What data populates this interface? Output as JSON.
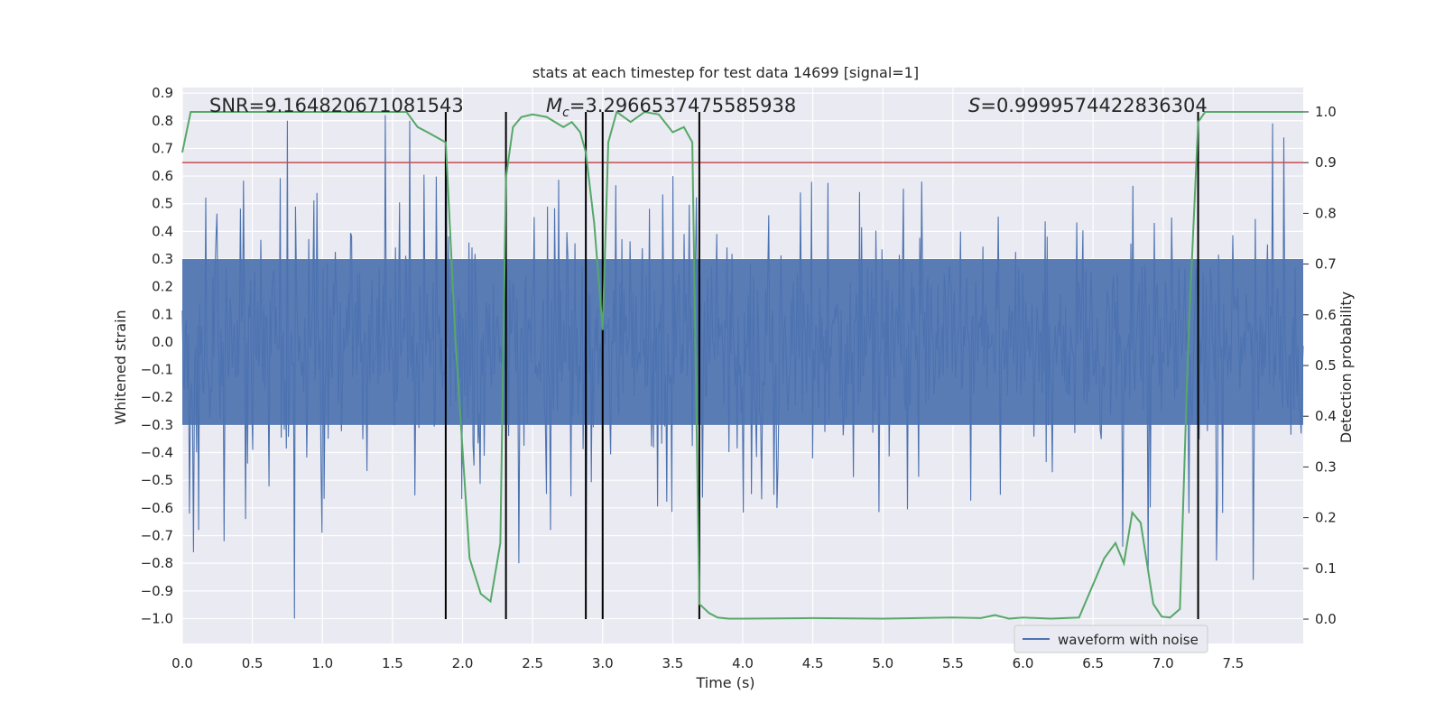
{
  "chart_data": {
    "type": "line",
    "title": "stats at each timestep for test data 14699 [signal=1]",
    "xlabel": "Time (s)",
    "ylabel": "Whitened strain",
    "y2label": "Detection probability",
    "xlim": [
      0,
      8.0
    ],
    "ylim": [
      -1.09,
      0.92
    ],
    "y2lim": [
      -0.048,
      1.048
    ],
    "xticks": [
      0.0,
      0.5,
      1.0,
      1.5,
      2.0,
      2.5,
      3.0,
      3.5,
      4.0,
      4.5,
      5.0,
      5.5,
      6.0,
      6.5,
      7.0,
      7.5
    ],
    "xtick_labels": [
      "0.0",
      "0.5",
      "1.0",
      "1.5",
      "2.0",
      "2.5",
      "3.0",
      "3.5",
      "4.0",
      "4.5",
      "5.0",
      "5.5",
      "6.0",
      "6.5",
      "7.0",
      "7.5"
    ],
    "yticks": [
      0.9,
      0.8,
      0.7,
      0.6,
      0.5,
      0.4,
      0.3,
      0.2,
      0.1,
      0.0,
      -0.1,
      -0.2,
      -0.3,
      -0.4,
      -0.5,
      -0.6,
      -0.7,
      -0.8,
      -0.9,
      -1.0
    ],
    "ytick_labels": [
      "0.9",
      "0.8",
      "0.7",
      "0.6",
      "0.5",
      "0.4",
      "0.3",
      "0.2",
      "0.1",
      "0.0",
      "−0.1",
      "−0.2",
      "−0.3",
      "−0.4",
      "−0.5",
      "−0.6",
      "−0.7",
      "−0.8",
      "−0.9",
      "−1.0"
    ],
    "y2ticks": [
      1.0,
      0.9,
      0.8,
      0.7,
      0.6,
      0.5,
      0.4,
      0.3,
      0.2,
      0.1,
      0.0
    ],
    "y2tick_labels": [
      "1.0",
      "0.9",
      "0.8",
      "0.7",
      "0.6",
      "0.5",
      "0.4",
      "0.3",
      "0.2",
      "0.1",
      "0.0"
    ],
    "annotations": {
      "snr": "SNR=9.164820671081543",
      "mc_prefix": "M",
      "mc_sub": "c",
      "mc_value": "=3.2966537475585938",
      "s_prefix": "S",
      "s_value": "=0.9999574422836304"
    },
    "legend": {
      "label": "waveform with noise",
      "position": "bottom-right"
    },
    "threshold": {
      "value": 0.9,
      "axis": "y2",
      "color": "#c44e52"
    },
    "event_lines": [
      1.88,
      2.31,
      2.88,
      3.0,
      3.69,
      7.25
    ],
    "waveform": {
      "name": "waveform with noise",
      "color": "#4c72b0",
      "x_range": [
        0,
        8.0
      ],
      "samples": 1100,
      "typical_envelope": [
        -0.3,
        0.3
      ],
      "spikes": [
        {
          "x": 0.05,
          "y": -0.62
        },
        {
          "x": 0.08,
          "y": -0.76
        },
        {
          "x": 0.12,
          "y": -0.68
        },
        {
          "x": 0.3,
          "y": -0.72
        },
        {
          "x": 0.45,
          "y": -0.64
        },
        {
          "x": 0.75,
          "y": 0.8
        },
        {
          "x": 0.8,
          "y": -1.0
        },
        {
          "x": 1.0,
          "y": -0.69
        },
        {
          "x": 1.45,
          "y": 0.82
        },
        {
          "x": 1.62,
          "y": 0.8
        },
        {
          "x": 2.4,
          "y": -0.8
        },
        {
          "x": 2.63,
          "y": -0.68
        },
        {
          "x": 2.88,
          "y": -0.78
        },
        {
          "x": 3.5,
          "y": 0.6
        },
        {
          "x": 5.28,
          "y": 0.58
        },
        {
          "x": 6.71,
          "y": -0.74
        },
        {
          "x": 6.89,
          "y": -0.83
        },
        {
          "x": 7.38,
          "y": -0.79
        },
        {
          "x": 7.64,
          "y": -0.86
        },
        {
          "x": 7.78,
          "y": 0.79
        },
        {
          "x": 7.86,
          "y": 0.74
        }
      ]
    },
    "probability": {
      "name": "detection probability",
      "axis": "y2",
      "color": "#55a868",
      "x": [
        0.0,
        0.06,
        0.2,
        0.4,
        0.6,
        0.8,
        1.0,
        1.2,
        1.4,
        1.6,
        1.68,
        1.75,
        1.88,
        1.95,
        2.05,
        2.13,
        2.2,
        2.27,
        2.31,
        2.36,
        2.42,
        2.5,
        2.6,
        2.72,
        2.78,
        2.84,
        2.88,
        2.94,
        3.0,
        3.04,
        3.1,
        3.2,
        3.3,
        3.4,
        3.5,
        3.58,
        3.64,
        3.69,
        3.76,
        3.82,
        3.9,
        4.0,
        4.5,
        5.0,
        5.5,
        5.7,
        5.8,
        5.9,
        6.0,
        6.2,
        6.4,
        6.58,
        6.66,
        6.72,
        6.78,
        6.84,
        6.93,
        6.99,
        7.05,
        7.12,
        7.18,
        7.25,
        7.3,
        7.38,
        7.5,
        8.0
      ],
      "values": [
        0.92,
        1.0,
        1.0,
        1.0,
        1.0,
        1.0,
        1.0,
        1.0,
        1.0,
        1.0,
        0.97,
        0.96,
        0.94,
        0.55,
        0.12,
        0.05,
        0.035,
        0.15,
        0.87,
        0.97,
        0.99,
        0.995,
        0.99,
        0.97,
        0.98,
        0.96,
        0.92,
        0.78,
        0.57,
        0.94,
        1.0,
        0.98,
        1.0,
        0.995,
        0.96,
        0.97,
        0.94,
        0.03,
        0.012,
        0.003,
        0.001,
        0.001,
        0.002,
        0.001,
        0.003,
        0.002,
        0.008,
        0.001,
        0.003,
        0.001,
        0.003,
        0.12,
        0.15,
        0.11,
        0.21,
        0.19,
        0.03,
        0.005,
        0.003,
        0.02,
        0.55,
        0.98,
        1.0,
        1.0,
        1.0,
        1.0
      ]
    }
  }
}
